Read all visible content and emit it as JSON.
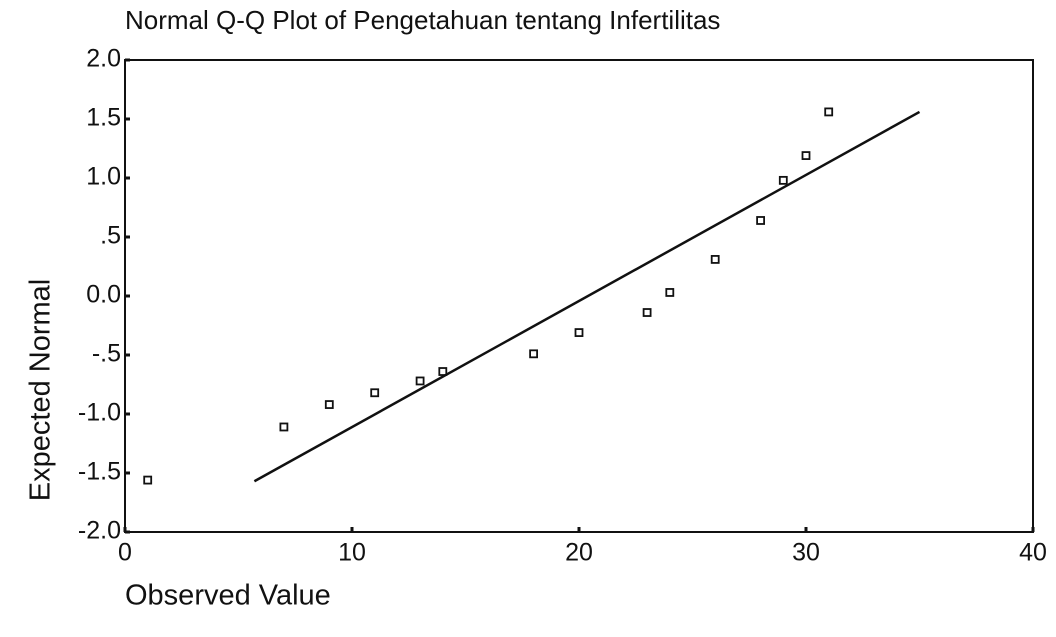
{
  "chart_data": {
    "type": "scatter",
    "title": "Normal Q-Q Plot of Pengetahuan tentang Infertilitas",
    "xlabel": "Observed Value",
    "ylabel": "Expected Normal",
    "x": [
      1,
      7,
      9,
      11,
      13,
      14,
      18,
      20,
      23,
      24,
      26,
      28,
      29,
      30,
      31
    ],
    "values": [
      -1.56,
      -1.11,
      -0.92,
      -0.82,
      -0.72,
      -0.64,
      -0.49,
      -0.31,
      -0.14,
      0.03,
      0.31,
      0.64,
      0.98,
      1.19,
      1.56
    ],
    "color": "#111111",
    "reference_line": {
      "x": [
        5.7,
        35
      ],
      "values": [
        -1.57,
        1.56
      ]
    },
    "xlim": [
      0,
      40
    ],
    "ylim": [
      -2,
      2
    ],
    "xticks": [
      0,
      10,
      20,
      30,
      40
    ],
    "yticks": [
      {
        "value": 2,
        "label": "2.0"
      },
      {
        "value": 1.5,
        "label": "1.5"
      },
      {
        "value": 1,
        "label": "1.0"
      },
      {
        "value": 0.5,
        "label": ".5"
      },
      {
        "value": 0,
        "label": "0.0"
      },
      {
        "value": -0.5,
        "label": "-.5"
      },
      {
        "value": -1,
        "label": "-1.0"
      },
      {
        "value": -1.5,
        "label": "-1.5"
      },
      {
        "value": -2,
        "label": "-2.0"
      }
    ]
  }
}
